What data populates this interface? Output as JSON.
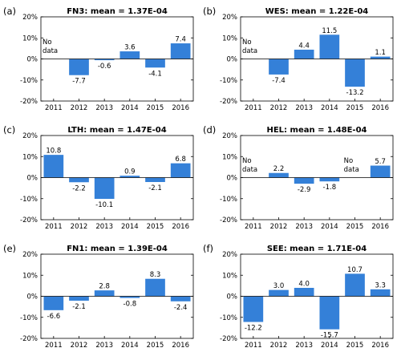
{
  "chart_data": [
    {
      "type": "bar",
      "letter": "(a)",
      "title": "FN3: mean = 1.37E-04",
      "categories": [
        "2011",
        "2012",
        "2013",
        "2014",
        "2015",
        "2016"
      ],
      "values": [
        null,
        -7.7,
        -0.6,
        3.6,
        -4.1,
        7.4
      ],
      "labels": [
        "",
        "-7.7",
        "-0.6",
        "3.6",
        "-4.1",
        "7.4"
      ],
      "no_data": [
        {
          "index": 0,
          "text": [
            "No",
            "data"
          ]
        }
      ],
      "ylim": [
        -20,
        20
      ],
      "yticks": [
        "-20%",
        "-10%",
        "0%",
        "10%",
        "20%"
      ],
      "bar_color": "#3480d8"
    },
    {
      "type": "bar",
      "letter": "(b)",
      "title": "WES: mean = 1.22E-04",
      "categories": [
        "2011",
        "2012",
        "2013",
        "2014",
        "2015",
        "2016"
      ],
      "values": [
        null,
        -7.4,
        4.4,
        11.5,
        -13.2,
        1.1
      ],
      "labels": [
        "",
        "-7.4",
        "4.4",
        "11.5",
        "-13.2",
        "1.1"
      ],
      "no_data": [
        {
          "index": 0,
          "text": [
            "No",
            "data"
          ]
        }
      ],
      "ylim": [
        -20,
        20
      ],
      "yticks": [
        "-20%",
        "-10%",
        "0%",
        "10%",
        "20%"
      ],
      "bar_color": "#3480d8"
    },
    {
      "type": "bar",
      "letter": "(c)",
      "title": "LTH: mean = 1.47E-04",
      "categories": [
        "2011",
        "2012",
        "2013",
        "2014",
        "2015",
        "2016"
      ],
      "values": [
        10.8,
        -2.2,
        -10.1,
        0.9,
        -2.1,
        6.8
      ],
      "labels": [
        "10.8",
        "-2.2",
        "-10.1",
        "0.9",
        "-2.1",
        "6.8"
      ],
      "no_data": [],
      "ylim": [
        -20,
        20
      ],
      "yticks": [
        "-20%",
        "-10%",
        "0%",
        "10%",
        "20%"
      ],
      "bar_color": "#3480d8"
    },
    {
      "type": "bar",
      "letter": "(d)",
      "title": "HEL: mean = 1.48E-04",
      "categories": [
        "2011",
        "2012",
        "2013",
        "2014",
        "2015",
        "2016"
      ],
      "values": [
        null,
        2.2,
        -2.9,
        -1.8,
        null,
        5.7
      ],
      "labels": [
        "",
        "2.2",
        "-2.9",
        "-1.8",
        "",
        "5.7"
      ],
      "no_data": [
        {
          "index": 0,
          "text": [
            "No",
            "data"
          ]
        },
        {
          "index": 4,
          "text": [
            "No",
            "data"
          ]
        }
      ],
      "ylim": [
        -20,
        20
      ],
      "yticks": [
        "-20%",
        "-10%",
        "0%",
        "10%",
        "20%"
      ],
      "bar_color": "#3480d8"
    },
    {
      "type": "bar",
      "letter": "(e)",
      "title": "FN1: mean = 1.39E-04",
      "categories": [
        "2011",
        "2012",
        "2013",
        "2014",
        "2015",
        "2016"
      ],
      "values": [
        -6.6,
        -2.1,
        2.8,
        -0.8,
        8.3,
        -2.4
      ],
      "labels": [
        "-6.6",
        "-2.1",
        "2.8",
        "-0.8",
        "8.3",
        "-2.4"
      ],
      "no_data": [],
      "ylim": [
        -20,
        20
      ],
      "yticks": [
        "-20%",
        "-10%",
        "0%",
        "10%",
        "20%"
      ],
      "bar_color": "#3480d8"
    },
    {
      "type": "bar",
      "letter": "(f)",
      "title": "SEE: mean = 1.71E-04",
      "categories": [
        "2011",
        "2012",
        "2013",
        "2014",
        "2015",
        "2016"
      ],
      "values": [
        -12.2,
        3.0,
        4.0,
        -15.7,
        10.7,
        3.3
      ],
      "labels": [
        "-12.2",
        "3.0",
        "4.0",
        "-15.7",
        "10.7",
        "3.3"
      ],
      "no_data": [],
      "ylim": [
        -20,
        20
      ],
      "yticks": [
        "-20%",
        "-10%",
        "0%",
        "10%",
        "20%"
      ],
      "bar_color": "#3480d8"
    }
  ]
}
